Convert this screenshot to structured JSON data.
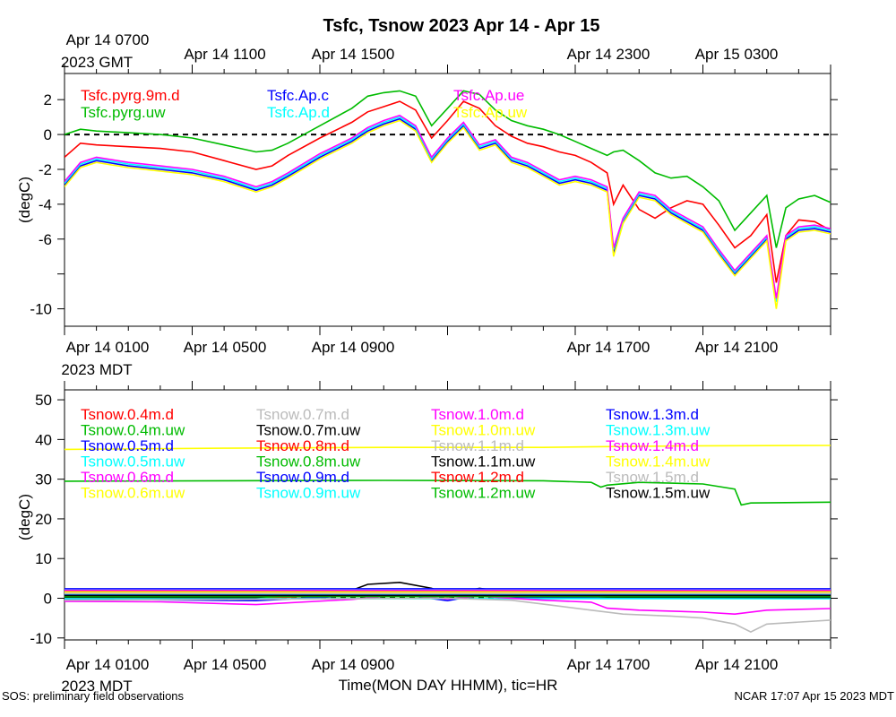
{
  "title": "Tsfc, Tsnow 2023 Apr 14 - Apr 15",
  "footer": {
    "left": "SOS: preliminary field observations",
    "center": "Time(MON DAY HHMM), tic=HR",
    "right": "NCAR 17:07 Apr 15 2023 MDT"
  },
  "axes": {
    "gmt_label": [
      "Apr 14 0700",
      "2023 GMT"
    ],
    "gmt_ticks": [
      "Apr 14 1100",
      "Apr 14 1500",
      "Apr 14 2300",
      "Apr 15 0300"
    ],
    "mdt_label": [
      "Apr 14 0100",
      "2023 MDT"
    ],
    "mdt_ticks": [
      "Apr 14 0500",
      "Apr 14 0900",
      "Apr 14 1700",
      "Apr 14 2100"
    ],
    "bottom_mdt_label": [
      "Apr 14 0100",
      "2023 MDT"
    ],
    "bottom_mdt_ticks": [
      "Apr 14 0500",
      "Apr 14 0900",
      "Apr 14 1700",
      "Apr 14 2100"
    ]
  },
  "chart_data": [
    {
      "type": "line",
      "panel": "top",
      "ylabel": "(degC)",
      "ylim": [
        -11,
        3.5
      ],
      "xlim": [
        0,
        24
      ],
      "yticks": [
        2,
        0,
        -2,
        -4,
        -6,
        -8,
        -10
      ],
      "ytick_labels": [
        "2",
        "0",
        "-2",
        "-4",
        "-6",
        "",
        "-10"
      ],
      "zero_line": true,
      "series": [
        {
          "name": "Tsfc.pyrg.9m.d",
          "color": "#ff0000",
          "x": [
            0,
            0.5,
            1,
            2,
            3,
            4,
            5,
            6,
            6.5,
            7,
            8,
            9,
            9.5,
            10,
            10.5,
            11,
            11.5,
            12,
            12.5,
            13,
            13.5,
            14,
            14.5,
            15,
            15.5,
            16,
            16.5,
            17,
            17.2,
            17.5,
            18,
            18.5,
            19,
            19.5,
            20,
            20.5,
            21,
            21.5,
            22,
            22.3,
            22.6,
            23,
            23.5,
            24
          ],
          "y": [
            -1.3,
            -0.5,
            -0.6,
            -0.7,
            -0.8,
            -1.0,
            -1.5,
            -2.0,
            -1.8,
            -1.2,
            -0.2,
            0.7,
            1.3,
            1.6,
            1.9,
            1.4,
            -0.2,
            0.8,
            1.9,
            1.5,
            0.5,
            -0.1,
            -0.5,
            -0.7,
            -1.0,
            -1.2,
            -1.6,
            -2.2,
            -4.0,
            -2.9,
            -4.3,
            -4.8,
            -4.2,
            -3.8,
            -4.0,
            -5.2,
            -6.5,
            -5.8,
            -4.6,
            -8.5,
            -5.8,
            -4.9,
            -5.0,
            -5.5
          ]
        },
        {
          "name": "Tsfc.pyrg.uw",
          "color": "#00bb00",
          "x": [
            0,
            0.5,
            1,
            2,
            3,
            4,
            5,
            6,
            6.5,
            7,
            8,
            9,
            9.5,
            10,
            10.5,
            11,
            11.5,
            12,
            12.5,
            13,
            13.5,
            14,
            14.5,
            15,
            15.5,
            16,
            16.5,
            17,
            17.2,
            17.5,
            18,
            18.5,
            19,
            19.5,
            20,
            20.5,
            21,
            21.5,
            22,
            22.3,
            22.6,
            23,
            23.5,
            24
          ],
          "y": [
            0.0,
            0.3,
            0.2,
            0.1,
            0.0,
            -0.2,
            -0.6,
            -1.0,
            -0.9,
            -0.5,
            0.5,
            1.5,
            2.2,
            2.4,
            2.5,
            2.2,
            0.5,
            1.5,
            2.5,
            2.3,
            1.4,
            0.8,
            0.5,
            0.3,
            0.0,
            -0.4,
            -0.8,
            -1.2,
            -1.0,
            -0.9,
            -1.5,
            -2.2,
            -2.5,
            -2.4,
            -3.0,
            -3.8,
            -5.5,
            -4.5,
            -3.5,
            -6.5,
            -4.2,
            -3.7,
            -3.5,
            -3.9
          ]
        },
        {
          "name": "Tsfc.Ap.c",
          "color": "#0000ff",
          "x": [
            0,
            0.5,
            1,
            2,
            3,
            4,
            5,
            6,
            6.5,
            7,
            8,
            9,
            9.5,
            10,
            10.5,
            11,
            11.5,
            12,
            12.5,
            13,
            13.5,
            14,
            14.5,
            15,
            15.5,
            16,
            16.5,
            17,
            17.2,
            17.5,
            18,
            18.5,
            19,
            19.5,
            20,
            20.5,
            21,
            21.5,
            22,
            22.3,
            22.6,
            23,
            23.5,
            24
          ],
          "y": [
            -2.9,
            -1.8,
            -1.5,
            -1.8,
            -2.0,
            -2.2,
            -2.6,
            -3.2,
            -2.9,
            -2.4,
            -1.3,
            -0.4,
            0.2,
            0.6,
            0.9,
            0.3,
            -1.5,
            -0.4,
            0.5,
            -0.8,
            -0.5,
            -1.5,
            -1.8,
            -2.3,
            -2.8,
            -2.6,
            -2.8,
            -3.2,
            -6.8,
            -5.0,
            -3.5,
            -3.7,
            -4.5,
            -5.0,
            -5.5,
            -6.8,
            -8.0,
            -7.0,
            -6.0,
            -9.5,
            -6.0,
            -5.5,
            -5.4,
            -5.6
          ]
        },
        {
          "name": "Tsfc.Ap.d",
          "color": "#00ffff",
          "x": [
            0,
            0.5,
            1,
            2,
            3,
            4,
            5,
            6,
            6.5,
            7,
            8,
            9,
            9.5,
            10,
            10.5,
            11,
            11.5,
            12,
            12.5,
            13,
            13.5,
            14,
            14.5,
            15,
            15.5,
            16,
            16.5,
            17,
            17.2,
            17.5,
            18,
            18.5,
            19,
            19.5,
            20,
            20.5,
            21,
            21.5,
            22,
            22.3,
            22.6,
            23,
            23.5,
            24
          ],
          "y": [
            -2.8,
            -1.7,
            -1.4,
            -1.7,
            -1.9,
            -2.1,
            -2.5,
            -3.1,
            -2.8,
            -2.3,
            -1.2,
            -0.3,
            0.3,
            0.7,
            1.0,
            0.4,
            -1.4,
            -0.3,
            0.6,
            -0.7,
            -0.4,
            -1.4,
            -1.7,
            -2.2,
            -2.7,
            -2.5,
            -2.7,
            -3.1,
            -6.6,
            -4.9,
            -3.4,
            -3.6,
            -4.4,
            -4.9,
            -5.4,
            -6.7,
            -7.9,
            -6.9,
            -5.9,
            -9.6,
            -5.9,
            -5.4,
            -5.3,
            -5.5
          ]
        },
        {
          "name": "Tsfc.Ap.ue",
          "color": "#ff00ff",
          "x": [
            0,
            0.5,
            1,
            2,
            3,
            4,
            5,
            6,
            6.5,
            7,
            8,
            9,
            9.5,
            10,
            10.5,
            11,
            11.5,
            12,
            12.5,
            13,
            13.5,
            14,
            14.5,
            15,
            15.5,
            16,
            16.5,
            17,
            17.2,
            17.5,
            18,
            18.5,
            19,
            19.5,
            20,
            20.5,
            21,
            21.5,
            22,
            22.3,
            22.6,
            23,
            23.5,
            24
          ],
          "y": [
            -2.7,
            -1.6,
            -1.3,
            -1.6,
            -1.8,
            -2.0,
            -2.4,
            -3.0,
            -2.7,
            -2.2,
            -1.1,
            -0.2,
            0.4,
            0.8,
            1.1,
            0.5,
            -1.3,
            -0.2,
            0.7,
            -0.6,
            -0.3,
            -1.3,
            -1.6,
            -2.1,
            -2.6,
            -2.4,
            -2.6,
            -3.0,
            -6.5,
            -4.8,
            -3.3,
            -3.5,
            -4.3,
            -4.8,
            -5.3,
            -6.6,
            -7.8,
            -6.8,
            -5.8,
            -9.4,
            -5.8,
            -5.3,
            -5.2,
            -5.4
          ]
        },
        {
          "name": "Tsfc.Ap.uw",
          "color": "#ffff00",
          "x": [
            0,
            0.5,
            1,
            2,
            3,
            4,
            5,
            6,
            6.5,
            7,
            8,
            9,
            9.5,
            10,
            10.5,
            11,
            11.5,
            12,
            12.5,
            13,
            13.5,
            14,
            14.5,
            15,
            15.5,
            16,
            16.5,
            17,
            17.2,
            17.5,
            18,
            18.5,
            19,
            19.5,
            20,
            20.5,
            21,
            21.5,
            22,
            22.3,
            22.6,
            23,
            23.5,
            24
          ],
          "y": [
            -3.0,
            -1.9,
            -1.6,
            -1.9,
            -2.1,
            -2.3,
            -2.7,
            -3.3,
            -3.0,
            -2.5,
            -1.4,
            -0.5,
            0.1,
            0.5,
            0.8,
            0.2,
            -1.6,
            -0.5,
            0.4,
            -0.9,
            -0.6,
            -1.6,
            -1.9,
            -2.4,
            -2.9,
            -2.7,
            -2.9,
            -3.3,
            -7.0,
            -5.1,
            -3.6,
            -3.8,
            -4.6,
            -5.1,
            -5.6,
            -6.9,
            -8.1,
            -7.1,
            -6.1,
            -10.0,
            -6.1,
            -5.6,
            -5.5,
            -5.7
          ]
        }
      ]
    },
    {
      "type": "line",
      "panel": "bottom",
      "ylabel": "(degC)",
      "ylim": [
        -10.5,
        52.5
      ],
      "xlim": [
        0,
        24
      ],
      "yticks": [
        50,
        40,
        30,
        20,
        10,
        0,
        -10
      ],
      "ytick_labels": [
        "50",
        "40",
        "30",
        "20",
        "10",
        "0",
        "-10"
      ],
      "zero_line": true,
      "series": [
        {
          "name": "Tsnow.0.4m.d",
          "color": "#ff0000",
          "x": [
            0,
            6,
            9,
            10.5,
            12,
            13,
            14,
            17,
            24
          ],
          "y": [
            0.1,
            0.0,
            0.8,
            1.2,
            0.3,
            1.0,
            0.5,
            0.2,
            0.2
          ]
        },
        {
          "name": "Tsnow.0.4m.uw",
          "color": "#00bb00",
          "x": [
            0,
            6,
            9,
            10.5,
            12,
            13,
            14,
            17,
            24
          ],
          "y": [
            0.3,
            0.2,
            1.0,
            1.5,
            0.4,
            1.2,
            0.6,
            0.3,
            0.3
          ]
        },
        {
          "name": "Tsnow.0.5m.d",
          "color": "#0000ff",
          "x": [
            0,
            6,
            9,
            10.5,
            12,
            13,
            14,
            17,
            24
          ],
          "y": [
            -0.2,
            -0.6,
            0.6,
            1.0,
            -0.6,
            0.8,
            0.2,
            0.0,
            0.0
          ]
        },
        {
          "name": "Tsnow.0.5m.uw",
          "color": "#00ffff",
          "x": [
            0,
            24
          ],
          "y": [
            -0.1,
            -0.1
          ]
        },
        {
          "name": "Tsnow.0.6m.d",
          "color": "#ff00ff",
          "x": [
            0,
            3,
            6,
            9,
            10.5,
            12,
            13,
            15,
            16.5,
            17,
            18,
            20,
            21,
            22,
            24
          ],
          "y": [
            -0.8,
            -0.9,
            -1.6,
            -0.3,
            0.8,
            -0.2,
            0.5,
            -0.5,
            -1.0,
            -2.5,
            -3.0,
            -3.5,
            -4.0,
            -3.0,
            -2.6
          ]
        },
        {
          "name": "Tsnow.0.6m.uw",
          "color": "#ffff00",
          "x": [
            0,
            24
          ],
          "y": [
            0.8,
            0.8
          ]
        },
        {
          "name": "Tsnow.0.7m.d",
          "color": "#bbbbbb",
          "x": [
            0,
            12,
            14,
            15,
            16.5,
            17.5,
            19,
            20,
            21,
            21.5,
            22,
            24
          ],
          "y": [
            -0.5,
            0.0,
            -0.5,
            -1.5,
            -3.0,
            -4.0,
            -4.5,
            -5.0,
            -6.5,
            -8.5,
            -6.5,
            -5.5
          ]
        },
        {
          "name": "Tsnow.0.7m.uw",
          "color": "#000000",
          "x": [
            0,
            6,
            9,
            9.5,
            10.5,
            11.5,
            12,
            13,
            14,
            17,
            24
          ],
          "y": [
            0.3,
            0.2,
            2.0,
            3.5,
            4.0,
            2.5,
            1.0,
            2.5,
            1.5,
            0.3,
            0.2
          ]
        },
        {
          "name": "Tsnow.0.8m.d",
          "color": "#ff0000",
          "x": [
            0,
            24
          ],
          "y": [
            0.5,
            0.5
          ]
        },
        {
          "name": "Tsnow.0.8m.uw",
          "color": "#00bb00",
          "x": [
            0,
            24
          ],
          "y": [
            0.4,
            0.4
          ]
        },
        {
          "name": "Tsnow.0.9m.d",
          "color": "#0000ff",
          "x": [
            0,
            24
          ],
          "y": [
            0.9,
            0.9
          ]
        },
        {
          "name": "Tsnow.0.9m.uw",
          "color": "#00ffff",
          "x": [
            0,
            24
          ],
          "y": [
            1.1,
            1.1
          ]
        },
        {
          "name": "Tsnow.1.0m.d",
          "color": "#ff00ff",
          "x": [
            0,
            24
          ],
          "y": [
            1.3,
            1.3
          ]
        },
        {
          "name": "Tsnow.1.0m.uw",
          "color": "#ffff00",
          "x": [
            0,
            5,
            10,
            15,
            17,
            20,
            24
          ],
          "y": [
            37.5,
            37.8,
            38.0,
            38.0,
            38.2,
            38.4,
            38.5
          ]
        },
        {
          "name": "Tsnow.1.1m.d",
          "color": "#bbbbbb",
          "x": [
            0,
            24
          ],
          "y": [
            1.5,
            1.5
          ]
        },
        {
          "name": "Tsnow.1.1m.uw",
          "color": "#000000",
          "x": [
            0,
            24
          ],
          "y": [
            1.7,
            1.7
          ]
        },
        {
          "name": "Tsnow.1.2m.d",
          "color": "#ff0000",
          "x": [
            0,
            24
          ],
          "y": [
            1.9,
            1.9
          ]
        },
        {
          "name": "Tsnow.1.2m.uw",
          "color": "#00bb00",
          "x": [
            0,
            5,
            10,
            15,
            16.5,
            16.8,
            17,
            18,
            19,
            20,
            21,
            21.2,
            21.5,
            24
          ],
          "y": [
            29.5,
            29.6,
            29.7,
            29.6,
            29.2,
            28.0,
            28.5,
            29.2,
            29.0,
            28.8,
            27.5,
            23.5,
            24.0,
            24.2
          ]
        },
        {
          "name": "Tsnow.1.3m.d",
          "color": "#0000ff",
          "x": [
            0,
            24
          ],
          "y": [
            2.4,
            2.4
          ]
        },
        {
          "name": "Tsnow.1.3m.uw",
          "color": "#00ffff",
          "x": [
            0,
            24
          ],
          "y": [
            2.1,
            2.1
          ]
        },
        {
          "name": "Tsnow.1.4m.d",
          "color": "#ff00ff",
          "x": [
            0,
            24
          ],
          "y": [
            2.0,
            2.0
          ]
        },
        {
          "name": "Tsnow.1.4m.uw",
          "color": "#ffff00",
          "x": [
            0,
            24
          ],
          "y": [
            1.6,
            1.6
          ]
        },
        {
          "name": "Tsnow.1.5m.d",
          "color": "#bbbbbb",
          "x": [
            0,
            24
          ],
          "y": [
            1.2,
            1.2
          ]
        },
        {
          "name": "Tsnow.1.5m.uw",
          "color": "#000000",
          "x": [
            0,
            24
          ],
          "y": [
            0.7,
            0.7
          ]
        }
      ]
    }
  ]
}
